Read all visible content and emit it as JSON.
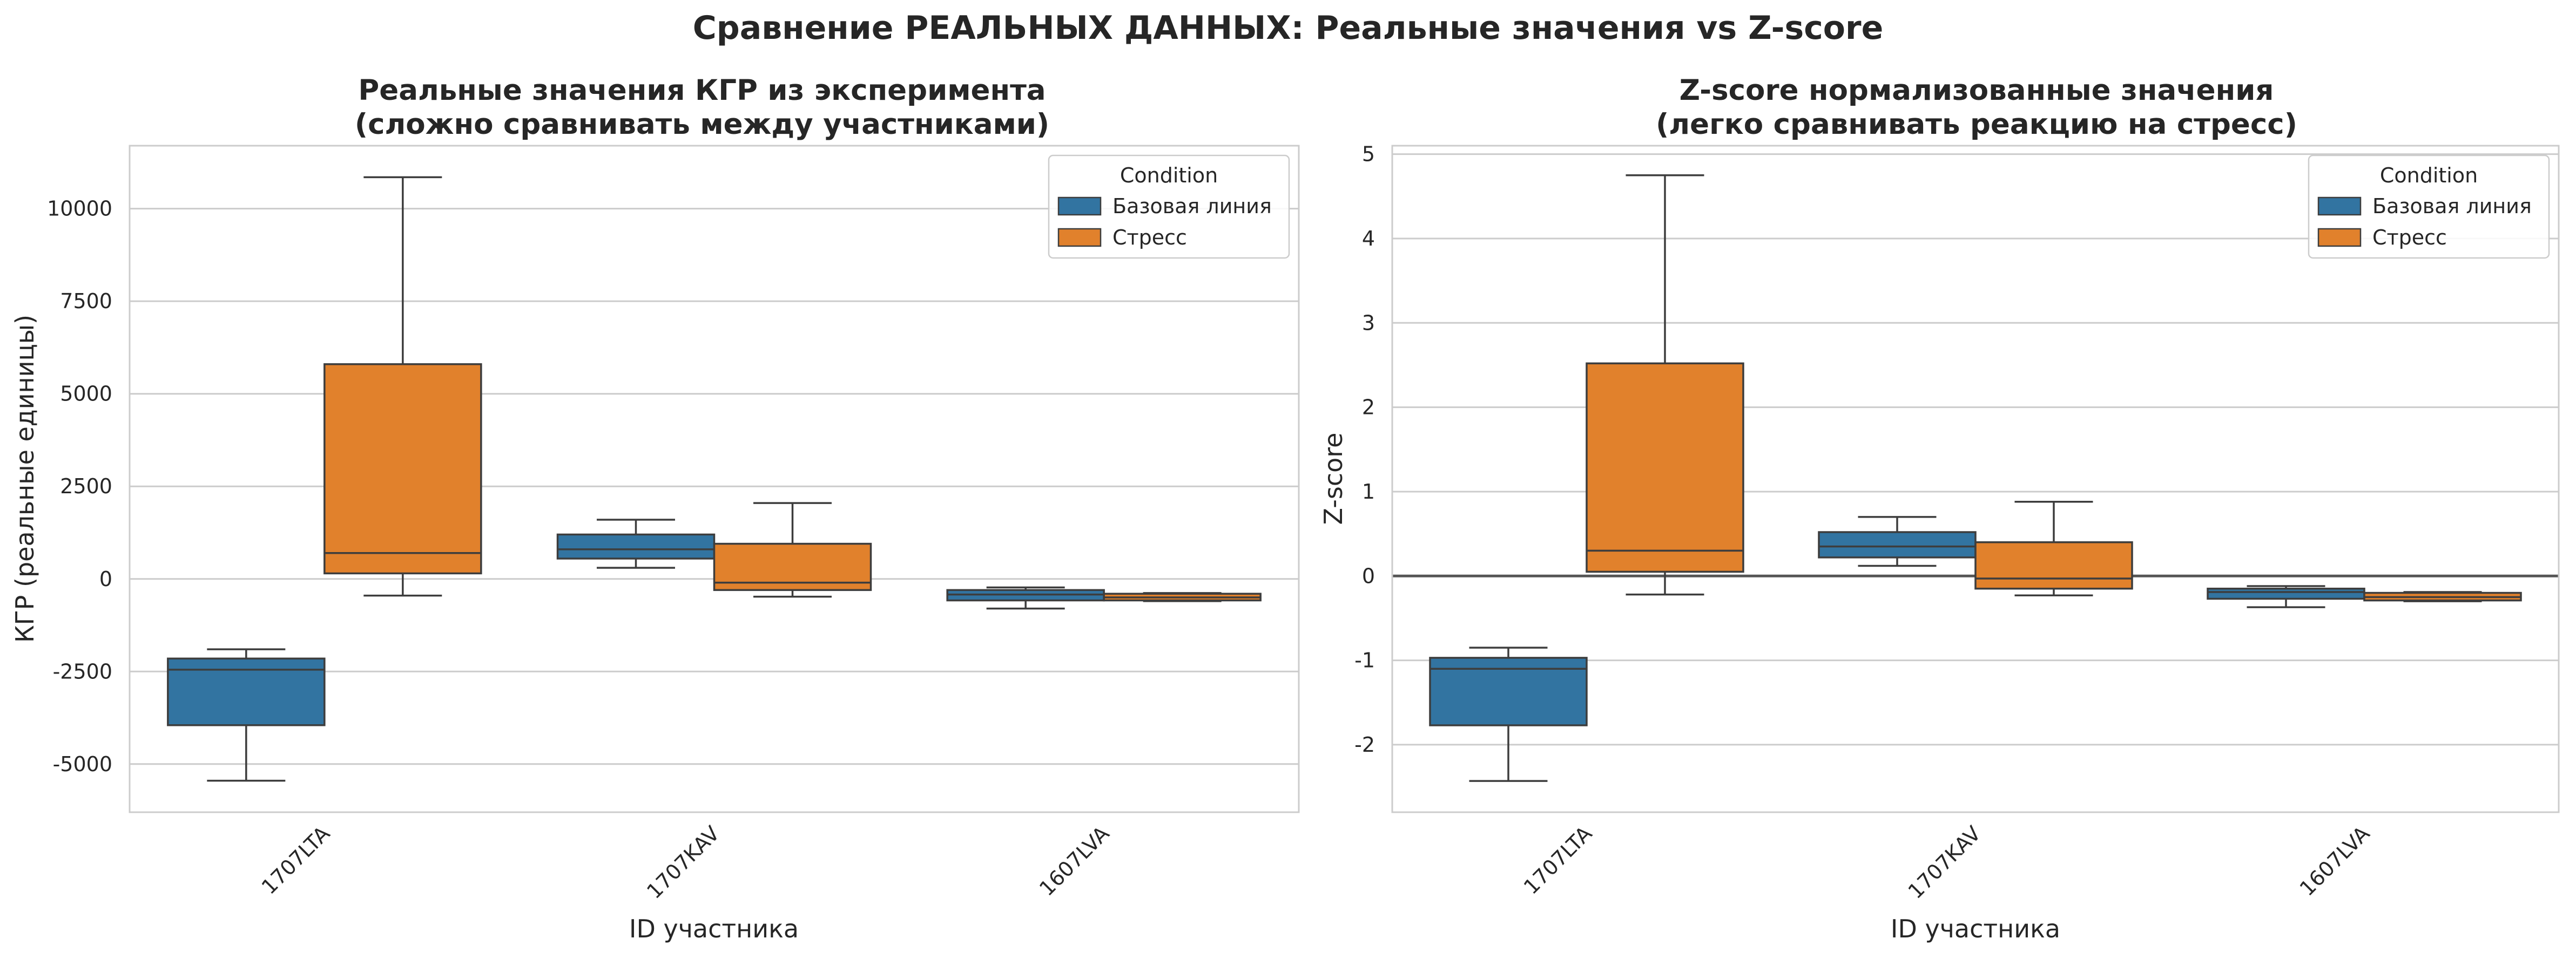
{
  "figure": {
    "suptitle": "Сравнение РЕАЛЬНЫХ ДАННЫХ: Реальные значения vs Z-score"
  },
  "colors": {
    "baseline": "#3274a1",
    "stress": "#e1812c",
    "grid": "#cccccc",
    "edge": "#3d3d3d",
    "spine": "#cccccc",
    "zero_line": "#555555"
  },
  "chart_data": [
    {
      "type": "box",
      "title_line1": "Реальные значения КГР из эксперимента",
      "title_line2": "(сложно сравнивать между участниками)",
      "xlabel": "ID участника",
      "ylabel": "КГР (реальные единицы)",
      "categories": [
        "1707LTA",
        "1707KAV",
        "1607LVA"
      ],
      "ylim": [
        -6300,
        11700
      ],
      "yticks": [
        -5000,
        -2500,
        0,
        2500,
        5000,
        7500,
        10000
      ],
      "ytick_labels": [
        "-5000",
        "-2500",
        "0",
        "2500",
        "5000",
        "7500",
        "10000"
      ],
      "grid": true,
      "zero_line": false,
      "legend": {
        "title": "Condition",
        "position": "top-right",
        "entries": [
          "Базовая линия",
          "Стресс"
        ]
      },
      "series": [
        {
          "name": "Базовая линия",
          "boxes": [
            {
              "whislo": -5450,
              "q1": -3950,
              "med": -2450,
              "q3": -2150,
              "whishi": -1900
            },
            {
              "whislo": 300,
              "q1": 550,
              "med": 800,
              "q3": 1200,
              "whishi": 1600
            },
            {
              "whislo": -800,
              "q1": -580,
              "med": -420,
              "q3": -300,
              "whishi": -230
            }
          ]
        },
        {
          "name": "Стресс",
          "boxes": [
            {
              "whislo": -450,
              "q1": 150,
              "med": 700,
              "q3": 5800,
              "whishi": 10850
            },
            {
              "whislo": -480,
              "q1": -300,
              "med": -100,
              "q3": 950,
              "whishi": 2050
            },
            {
              "whislo": -600,
              "q1": -580,
              "med": -500,
              "q3": -400,
              "whishi": -380
            }
          ]
        }
      ]
    },
    {
      "type": "box",
      "title_line1": "Z-score нормализованные значения",
      "title_line2": "(легко сравнивать реакцию на стресс)",
      "xlabel": "ID участника",
      "ylabel": "Z-score",
      "categories": [
        "1707LTA",
        "1707KAV",
        "1607LVA"
      ],
      "ylim": [
        -2.8,
        5.1
      ],
      "yticks": [
        -2,
        -1,
        0,
        1,
        2,
        3,
        4,
        5
      ],
      "ytick_labels": [
        "-2",
        "-1",
        "0",
        "1",
        "2",
        "3",
        "4",
        "5"
      ],
      "grid": true,
      "zero_line": true,
      "legend": {
        "title": "Condition",
        "position": "top-right",
        "entries": [
          "Базовая линия",
          "Стресс"
        ]
      },
      "series": [
        {
          "name": "Базовая линия",
          "boxes": [
            {
              "whislo": -2.43,
              "q1": -1.77,
              "med": -1.1,
              "q3": -0.97,
              "whishi": -0.85
            },
            {
              "whislo": 0.12,
              "q1": 0.22,
              "med": 0.35,
              "q3": 0.52,
              "whishi": 0.7
            },
            {
              "whislo": -0.37,
              "q1": -0.27,
              "med": -0.19,
              "q3": -0.15,
              "whishi": -0.12
            }
          ]
        },
        {
          "name": "Стресс",
          "boxes": [
            {
              "whislo": -0.22,
              "q1": 0.05,
              "med": 0.3,
              "q3": 2.52,
              "whishi": 4.75
            },
            {
              "whislo": -0.23,
              "q1": -0.15,
              "med": -0.03,
              "q3": 0.4,
              "whishi": 0.88
            },
            {
              "whislo": -0.3,
              "q1": -0.29,
              "med": -0.25,
              "q3": -0.2,
              "whishi": -0.19
            }
          ]
        }
      ]
    }
  ]
}
